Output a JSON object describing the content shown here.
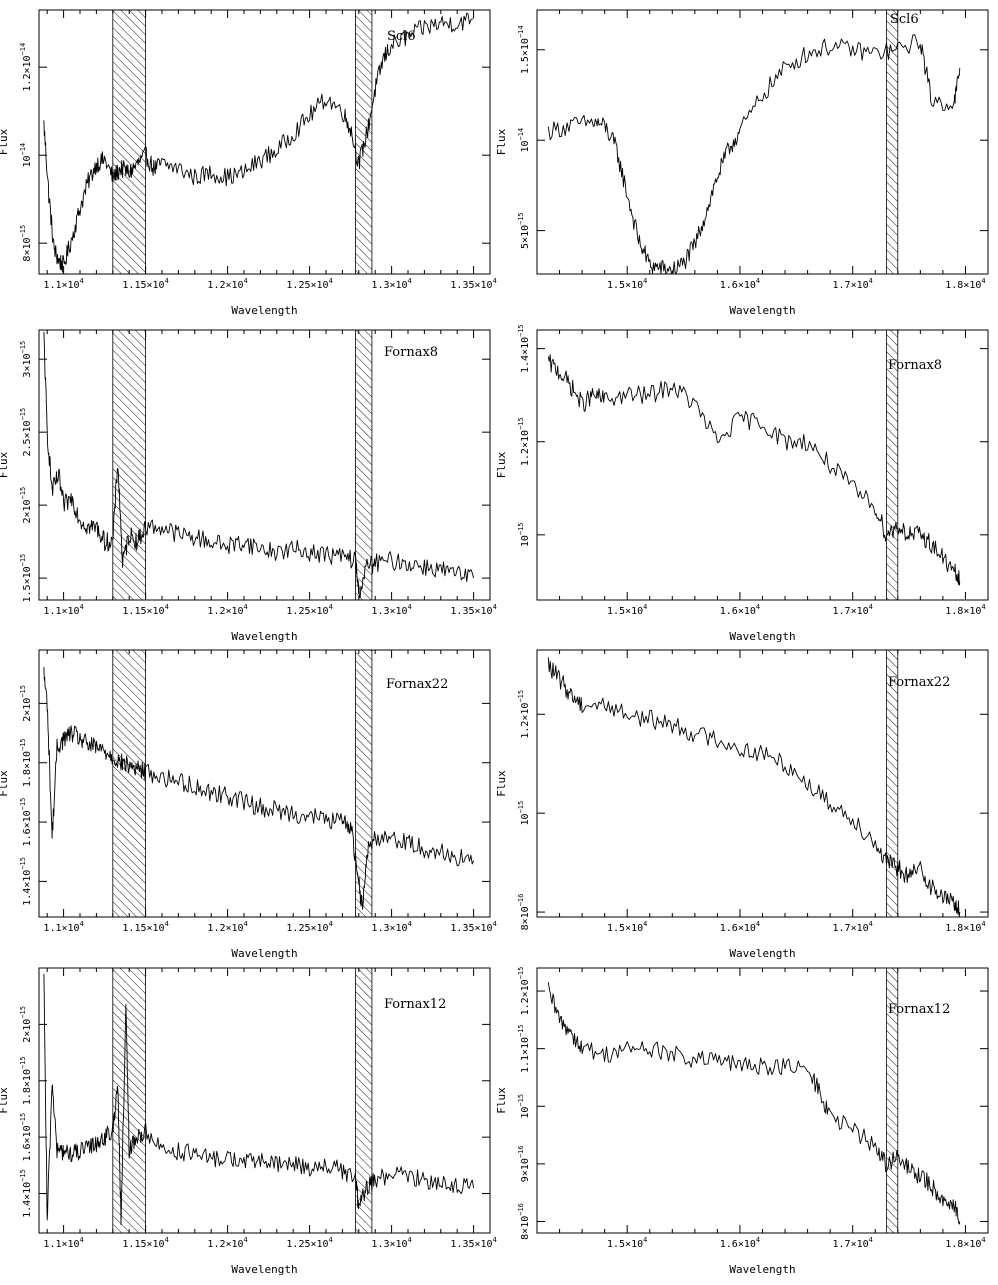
{
  "chart_data": [
    {
      "type": "line",
      "label": "Scl6",
      "xlabel": "Wavelength",
      "ylabel": "Flux",
      "xlim": [
        10850,
        13600
      ],
      "ylim": [
        7.3e-15,
        1.33e-14
      ],
      "xticks": [
        11000,
        11500,
        12000,
        12500,
        13000,
        13500
      ],
      "xtick_labels": [
        "1.1×10⁴",
        "1.15×10⁴",
        "1.2×10⁴",
        "1.25×10⁴",
        "1.3×10⁴",
        "1.35×10⁴"
      ],
      "yticks": [
        8e-15,
        1e-14,
        1.2e-14
      ],
      "ytick_labels": [
        "8×10⁻¹⁵",
        "10⁻¹⁴",
        "1.2×10⁻¹⁴"
      ],
      "bands": [
        [
          11300,
          11500
        ],
        [
          12780,
          12880
        ]
      ],
      "x": [
        10880,
        10910,
        10940,
        10970,
        11000,
        11050,
        11100,
        11150,
        11200,
        11250,
        11300,
        11350,
        11400,
        11450,
        11500,
        11550,
        11600,
        11700,
        11800,
        11900,
        12000,
        12100,
        12200,
        12300,
        12400,
        12500,
        12600,
        12700,
        12750,
        12800,
        12850,
        12900,
        12950,
        13000,
        13100,
        13200,
        13300,
        13400,
        13500
      ],
      "y": [
        1.07e-14,
        9.1e-15,
        7.9e-15,
        7.6e-15,
        7.5e-15,
        8.1e-15,
        8.8e-15,
        9.4e-15,
        9.8e-15,
        9.9e-15,
        9.5e-15,
        9.7e-15,
        9.6e-15,
        9.8e-15,
        1e-14,
        9.7e-15,
        9.8e-15,
        9.7e-15,
        9.5e-15,
        9.6e-15,
        9.5e-15,
        9.6e-15,
        9.9e-15,
        1.01e-14,
        1.05e-14,
        1.09e-14,
        1.13e-14,
        1.1e-14,
        1.06e-14,
        9.8e-15,
        1.05e-14,
        1.15e-14,
        1.22e-14,
        1.25e-14,
        1.27e-14,
        1.29e-14,
        1.3e-14,
        1.3e-14,
        1.31e-14
      ]
    },
    {
      "type": "line",
      "label": "Scl6",
      "xlabel": "Wavelength",
      "ylabel": "Flux",
      "xlim": [
        14200,
        18200
      ],
      "ylim": [
        2.6e-15,
        1.72e-14
      ],
      "xticks": [
        15000,
        16000,
        17000,
        18000
      ],
      "xtick_labels": [
        "1.5×10⁴",
        "1.6×10⁴",
        "1.7×10⁴",
        "1.8×10⁴"
      ],
      "yticks": [
        5e-15,
        1e-14,
        1.5e-14
      ],
      "ytick_labels": [
        "5×10⁻¹⁵",
        "10⁻¹⁴",
        "1.5×10⁻¹⁴"
      ],
      "bands": [
        [
          17300,
          17400
        ]
      ],
      "x": [
        14300,
        14500,
        14700,
        14800,
        14900,
        15000,
        15100,
        15200,
        15300,
        15400,
        15500,
        15600,
        15700,
        15800,
        15900,
        16000,
        16200,
        16400,
        16600,
        16800,
        17000,
        17200,
        17400,
        17600,
        17700,
        17900,
        17950
      ],
      "y": [
        1.05e-14,
        1.08e-14,
        1.1e-14,
        1.08e-14,
        9.6e-15,
        7e-15,
        4.5e-15,
        3.1e-15,
        2.9e-15,
        2.8e-15,
        3.2e-15,
        4.2e-15,
        6e-15,
        8e-15,
        9.5e-15,
        1.05e-14,
        1.25e-14,
        1.4e-14,
        1.48e-14,
        1.52e-14,
        1.5e-14,
        1.48e-14,
        1.5e-14,
        1.55e-14,
        1.22e-14,
        1.2e-14,
        1.4e-14
      ]
    },
    {
      "type": "line",
      "label": "Fornax8",
      "xlabel": "Wavelength",
      "ylabel": "Flux",
      "xlim": [
        10850,
        13600
      ],
      "ylim": [
        1.35e-15,
        3.2e-15
      ],
      "xticks": [
        11000,
        11500,
        12000,
        12500,
        13000,
        13500
      ],
      "xtick_labels": [
        "1.1×10⁴",
        "1.15×10⁴",
        "1.2×10⁴",
        "1.25×10⁴",
        "1.3×10⁴",
        "1.35×10⁴"
      ],
      "yticks": [
        1.5e-15,
        2e-15,
        2.5e-15,
        3e-15
      ],
      "ytick_labels": [
        "1.5×10⁻¹⁵",
        "2×10⁻¹⁵",
        "2.5×10⁻¹⁵",
        "3×10⁻¹⁵"
      ],
      "bands": [
        [
          11300,
          11500
        ],
        [
          12780,
          12880
        ]
      ],
      "x": [
        10880,
        10900,
        10930,
        10970,
        11000,
        11050,
        11100,
        11150,
        11200,
        11250,
        11300,
        11330,
        11360,
        11400,
        11450,
        11500,
        11600,
        11700,
        11800,
        11900,
        12000,
        12100,
        12200,
        12300,
        12400,
        12500,
        12600,
        12700,
        12780,
        12800,
        12850,
        12900,
        13000,
        13100,
        13200,
        13300,
        13400,
        13500
      ],
      "y": [
        3.15e-15,
        2.5e-15,
        2.1e-15,
        2.2e-15,
        2e-15,
        2.05e-15,
        1.9e-15,
        1.85e-15,
        1.85e-15,
        1.75e-15,
        1.75e-15,
        2.3e-15,
        1.6e-15,
        1.8e-15,
        1.75e-15,
        1.85e-15,
        1.85e-15,
        1.8e-15,
        1.78e-15,
        1.75e-15,
        1.72e-15,
        1.75e-15,
        1.7e-15,
        1.68e-15,
        1.7e-15,
        1.68e-15,
        1.66e-15,
        1.65e-15,
        1.62e-15,
        1.4e-15,
        1.58e-15,
        1.6e-15,
        1.62e-15,
        1.6e-15,
        1.58e-15,
        1.56e-15,
        1.52e-15,
        1.5e-15
      ]
    },
    {
      "type": "line",
      "label": "Fornax8",
      "xlabel": "Wavelength",
      "ylabel": "Flux",
      "xlim": [
        14200,
        18200
      ],
      "ylim": [
        8.6e-16,
        1.44e-15
      ],
      "xticks": [
        15000,
        16000,
        17000,
        18000
      ],
      "xtick_labels": [
        "1.5×10⁴",
        "1.6×10⁴",
        "1.7×10⁴",
        "1.8×10⁴"
      ],
      "yticks": [
        1e-15,
        1.2e-15,
        1.4e-15
      ],
      "ytick_labels": [
        "10⁻¹⁵",
        "1.2×10⁻¹⁵",
        "1.4×10⁻¹⁵"
      ],
      "bands": [
        [
          17300,
          17400
        ]
      ],
      "x": [
        14300,
        14400,
        14500,
        14600,
        14700,
        14800,
        15000,
        15200,
        15400,
        15600,
        15800,
        16000,
        16200,
        16400,
        16600,
        16800,
        17000,
        17200,
        17300,
        17400,
        17500,
        17600,
        17700,
        17800,
        17900,
        17950
      ],
      "y": [
        1.37e-15,
        1.35e-15,
        1.32e-15,
        1.28e-15,
        1.3e-15,
        1.29e-15,
        1.3e-15,
        1.3e-15,
        1.32e-15,
        1.28e-15,
        1.2e-15,
        1.25e-15,
        1.24e-15,
        1.2e-15,
        1.2e-15,
        1.15e-15,
        1.1e-15,
        1.06e-15,
        1e-15,
        1.02e-15,
        1e-15,
        1e-15,
        9.8e-16,
        9.5e-16,
        9.2e-16,
        9e-16
      ]
    },
    {
      "type": "line",
      "label": "Fornax22",
      "xlabel": "Wavelength",
      "ylabel": "Flux",
      "xlim": [
        10850,
        13600
      ],
      "ylim": [
        1.28e-15,
        2.18e-15
      ],
      "xticks": [
        11000,
        11500,
        12000,
        12500,
        13000,
        13500
      ],
      "xtick_labels": [
        "1.1×10⁴",
        "1.15×10⁴",
        "1.2×10⁴",
        "1.25×10⁴",
        "1.3×10⁴",
        "1.35×10⁴"
      ],
      "yticks": [
        1.4e-15,
        1.6e-15,
        1.8e-15,
        2e-15
      ],
      "ytick_labels": [
        "1.4×10⁻¹⁵",
        "1.6×10⁻¹⁵",
        "1.8×10⁻¹⁵",
        "2×10⁻¹⁵"
      ],
      "bands": [
        [
          11300,
          11500
        ],
        [
          12780,
          12880
        ]
      ],
      "x": [
        10880,
        10900,
        10930,
        10960,
        11000,
        11050,
        11100,
        11150,
        11200,
        11250,
        11300,
        11350,
        11400,
        11450,
        11500,
        11600,
        11700,
        11800,
        11900,
        12000,
        12100,
        12200,
        12300,
        12400,
        12500,
        12600,
        12700,
        12750,
        12800,
        12820,
        12850,
        12900,
        13000,
        13100,
        13200,
        13300,
        13400,
        13500
      ],
      "y": [
        2.1e-15,
        2e-15,
        1.55e-15,
        1.85e-15,
        1.88e-15,
        1.9e-15,
        1.88e-15,
        1.86e-15,
        1.85e-15,
        1.84e-15,
        1.82e-15,
        1.8e-15,
        1.79e-15,
        1.78e-15,
        1.77e-15,
        1.75e-15,
        1.74e-15,
        1.72e-15,
        1.7e-15,
        1.69e-15,
        1.67e-15,
        1.65e-15,
        1.64e-15,
        1.63e-15,
        1.62e-15,
        1.61e-15,
        1.6e-15,
        1.59e-15,
        1.4e-15,
        1.31e-15,
        1.5e-15,
        1.55e-15,
        1.55e-15,
        1.53e-15,
        1.51e-15,
        1.5e-15,
        1.48e-15,
        1.47e-15
      ]
    },
    {
      "type": "line",
      "label": "Fornax22",
      "xlabel": "Wavelength",
      "ylabel": "Flux",
      "xlim": [
        14200,
        18200
      ],
      "ylim": [
        7.9e-16,
        1.33e-15
      ],
      "xticks": [
        15000,
        16000,
        17000,
        18000
      ],
      "xtick_labels": [
        "1.5×10⁴",
        "1.6×10⁴",
        "1.7×10⁴",
        "1.8×10⁴"
      ],
      "yticks": [
        8e-16,
        1e-15,
        1.2e-15
      ],
      "ytick_labels": [
        "8×10⁻¹⁶",
        "10⁻¹⁵",
        "1.2×10⁻¹⁵"
      ],
      "bands": [
        [
          17300,
          17400
        ]
      ],
      "x": [
        14300,
        14400,
        14500,
        14600,
        14800,
        15000,
        15200,
        15400,
        15600,
        15800,
        16000,
        16200,
        16400,
        16600,
        16800,
        17000,
        17200,
        17300,
        17400,
        17500,
        17600,
        17700,
        17800,
        17900,
        17950
      ],
      "y": [
        1.3e-15,
        1.27e-15,
        1.24e-15,
        1.22e-15,
        1.22e-15,
        1.2e-15,
        1.19e-15,
        1.18e-15,
        1.16e-15,
        1.15e-15,
        1.13e-15,
        1.12e-15,
        1.1e-15,
        1.06e-15,
        1.02e-15,
        9.9e-16,
        9.4e-16,
        9e-16,
        8.9e-16,
        8.7e-16,
        8.9e-16,
        8.5e-16,
        8.3e-16,
        8.2e-16,
        8e-16
      ]
    },
    {
      "type": "line",
      "label": "Fornax12",
      "xlabel": "Wavelength",
      "ylabel": "Flux",
      "xlim": [
        10850,
        13600
      ],
      "ylim": [
        1.26e-15,
        2.2e-15
      ],
      "xticks": [
        11000,
        11500,
        12000,
        12500,
        13000,
        13500
      ],
      "xtick_labels": [
        "1.1×10⁴",
        "1.15×10⁴",
        "1.2×10⁴",
        "1.25×10⁴",
        "1.3×10⁴",
        "1.35×10⁴"
      ],
      "yticks": [
        1.4e-15,
        1.6e-15,
        1.8e-15,
        2e-15
      ],
      "ytick_labels": [
        "1.4×10⁻¹⁵",
        "1.6×10⁻¹⁵",
        "1.8×10⁻¹⁵",
        "2×10⁻¹⁵"
      ],
      "bands": [
        [
          11300,
          11500
        ],
        [
          12780,
          12880
        ]
      ],
      "x": [
        10880,
        10900,
        10930,
        10960,
        11000,
        11050,
        11100,
        11150,
        11200,
        11250,
        11300,
        11330,
        11350,
        11380,
        11400,
        11450,
        11500,
        11600,
        11700,
        11800,
        11900,
        12000,
        12100,
        12200,
        12300,
        12400,
        12500,
        12600,
        12700,
        12780,
        12800,
        12850,
        12900,
        13000,
        13100,
        13200,
        13300,
        13400,
        13500
      ],
      "y": [
        2.15e-15,
        1.3e-15,
        1.8e-15,
        1.55e-15,
        1.55e-15,
        1.54e-15,
        1.55e-15,
        1.56e-15,
        1.58e-15,
        1.6e-15,
        1.62e-15,
        1.8e-15,
        1.3e-15,
        2.05e-15,
        1.55e-15,
        1.6e-15,
        1.62e-15,
        1.56e-15,
        1.55e-15,
        1.54e-15,
        1.52e-15,
        1.53e-15,
        1.51e-15,
        1.52e-15,
        1.5e-15,
        1.51e-15,
        1.49e-15,
        1.5e-15,
        1.48e-15,
        1.45e-15,
        1.35e-15,
        1.42e-15,
        1.45e-15,
        1.47e-15,
        1.46e-15,
        1.45e-15,
        1.44e-15,
        1.43e-15,
        1.42e-15
      ]
    },
    {
      "type": "line",
      "label": "Fornax12",
      "xlabel": "Wavelength",
      "ylabel": "Flux",
      "xlim": [
        14200,
        18200
      ],
      "ylim": [
        7.8e-16,
        1.24e-15
      ],
      "xticks": [
        15000,
        16000,
        17000,
        18000
      ],
      "xtick_labels": [
        "1.5×10⁴",
        "1.6×10⁴",
        "1.7×10⁴",
        "1.8×10⁴"
      ],
      "yticks": [
        8e-16,
        9e-16,
        1e-15,
        1.1e-15,
        1.2e-15
      ],
      "ytick_labels": [
        "8×10⁻¹⁶",
        "9×10⁻¹⁶",
        "10⁻¹⁵",
        "1.1×10⁻¹⁵",
        "1.2×10⁻¹⁵"
      ],
      "bands": [
        [
          17300,
          17400
        ]
      ],
      "x": [
        14300,
        14400,
        14500,
        14600,
        14800,
        15000,
        15200,
        15400,
        15600,
        15800,
        16000,
        16200,
        16400,
        16600,
        16700,
        16800,
        17000,
        17200,
        17300,
        17400,
        17500,
        17600,
        17700,
        17800,
        17900,
        17950
      ],
      "y": [
        1.2e-15,
        1.15e-15,
        1.13e-15,
        1.1e-15,
        1.09e-15,
        1.1e-15,
        1.1e-15,
        1.09e-15,
        1.08e-15,
        1.08e-15,
        1.07e-15,
        1.07e-15,
        1.07e-15,
        1.06e-15,
        1.03e-15,
        9.8e-16,
        9.6e-16,
        9.3e-16,
        9e-16,
        9.1e-16,
        8.9e-16,
        8.8e-16,
        8.6e-16,
        8.4e-16,
        8.3e-16,
        8e-16
      ]
    }
  ]
}
